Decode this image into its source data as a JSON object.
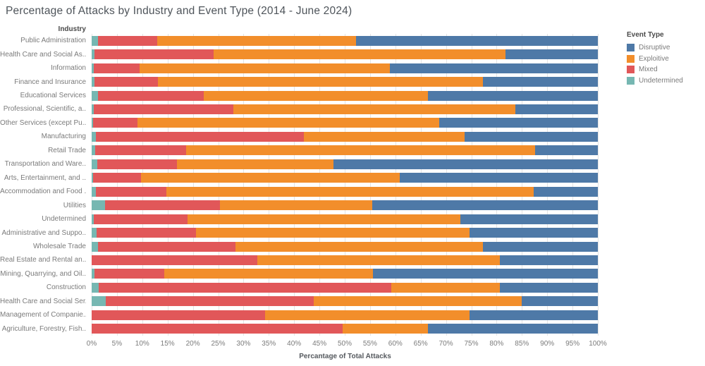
{
  "title": "Percentage of Attacks by Industry and Event Type (2014 - June 2024)",
  "row_header": "Industry",
  "legend": {
    "title": "Event Type",
    "items": [
      {
        "label": "Disruptive",
        "color": "#4e79a7"
      },
      {
        "label": "Exploitive",
        "color": "#f28e2b"
      },
      {
        "label": "Mixed",
        "color": "#e15759"
      },
      {
        "label": "Undetermined",
        "color": "#76b7b2"
      }
    ]
  },
  "chart_data": {
    "type": "bar",
    "orientation": "horizontal",
    "stacked": true,
    "title": "Percentage of Attacks by Industry and Event Type (2014 - June 2024)",
    "xlabel": "Percantage of Total Attacks",
    "ylabel": "Industry",
    "xlim": [
      0,
      100
    ],
    "grid": true,
    "legend_position": "right",
    "x_ticks": [
      "0%",
      "5%",
      "10%",
      "15%",
      "20%",
      "25%",
      "30%",
      "35%",
      "40%",
      "45%",
      "50%",
      "55%",
      "60%",
      "65%",
      "70%",
      "75%",
      "80%",
      "85%",
      "90%",
      "95%",
      "100%"
    ],
    "categories": [
      "Public Administration",
      "Health Care and Social As..",
      "Information",
      "Finance and Insurance",
      "Educational Services",
      "Professional, Scientific, a..",
      "Other Services (except Pu..",
      "Manufacturing",
      "Retail Trade",
      "Transportation and Ware..",
      "Arts, Entertainment, and ..",
      "Accommodation and Food ..",
      "Utilities",
      "Undetermined",
      "Administrative and Suppo..",
      "Wholesale Trade",
      "Real Estate and Rental an..",
      "Mining, Quarrying, and Oil..",
      "Construction",
      "Health Care and Social Ser..",
      "Management of Companie..",
      "Agriculture, Forestry, Fish.."
    ],
    "series": [
      {
        "name": "Undetermined",
        "color": "#76b7b2",
        "values": [
          1.2,
          0.5,
          0.4,
          0.5,
          1.3,
          0.4,
          0.3,
          0.8,
          0.7,
          1.1,
          0.3,
          0.8,
          2.6,
          0.4,
          1.0,
          1.2,
          0.0,
          0.6,
          1.4,
          2.8,
          0.0,
          0.0
        ]
      },
      {
        "name": "Mixed",
        "color": "#e15759",
        "values": [
          11.8,
          23.6,
          9.1,
          12.6,
          20.9,
          27.6,
          8.7,
          41.1,
          18.0,
          15.8,
          9.4,
          13.9,
          22.7,
          18.6,
          19.6,
          27.2,
          32.7,
          13.7,
          57.8,
          41.1,
          34.3,
          49.6
        ]
      },
      {
        "name": "Exploitive",
        "color": "#f28e2b",
        "values": [
          39.2,
          57.7,
          49.4,
          64.2,
          44.3,
          55.7,
          59.6,
          31.8,
          68.9,
          30.9,
          51.1,
          72.6,
          30.2,
          53.9,
          54.0,
          48.9,
          48.0,
          41.3,
          21.4,
          41.1,
          40.4,
          16.8
        ]
      },
      {
        "name": "Disruptive",
        "color": "#4e79a7",
        "values": [
          47.8,
          18.2,
          41.1,
          22.7,
          33.5,
          16.3,
          31.4,
          26.3,
          12.4,
          52.2,
          39.2,
          12.7,
          44.5,
          27.1,
          25.4,
          22.7,
          19.3,
          44.4,
          19.4,
          15.0,
          25.3,
          33.6
        ]
      }
    ]
  }
}
